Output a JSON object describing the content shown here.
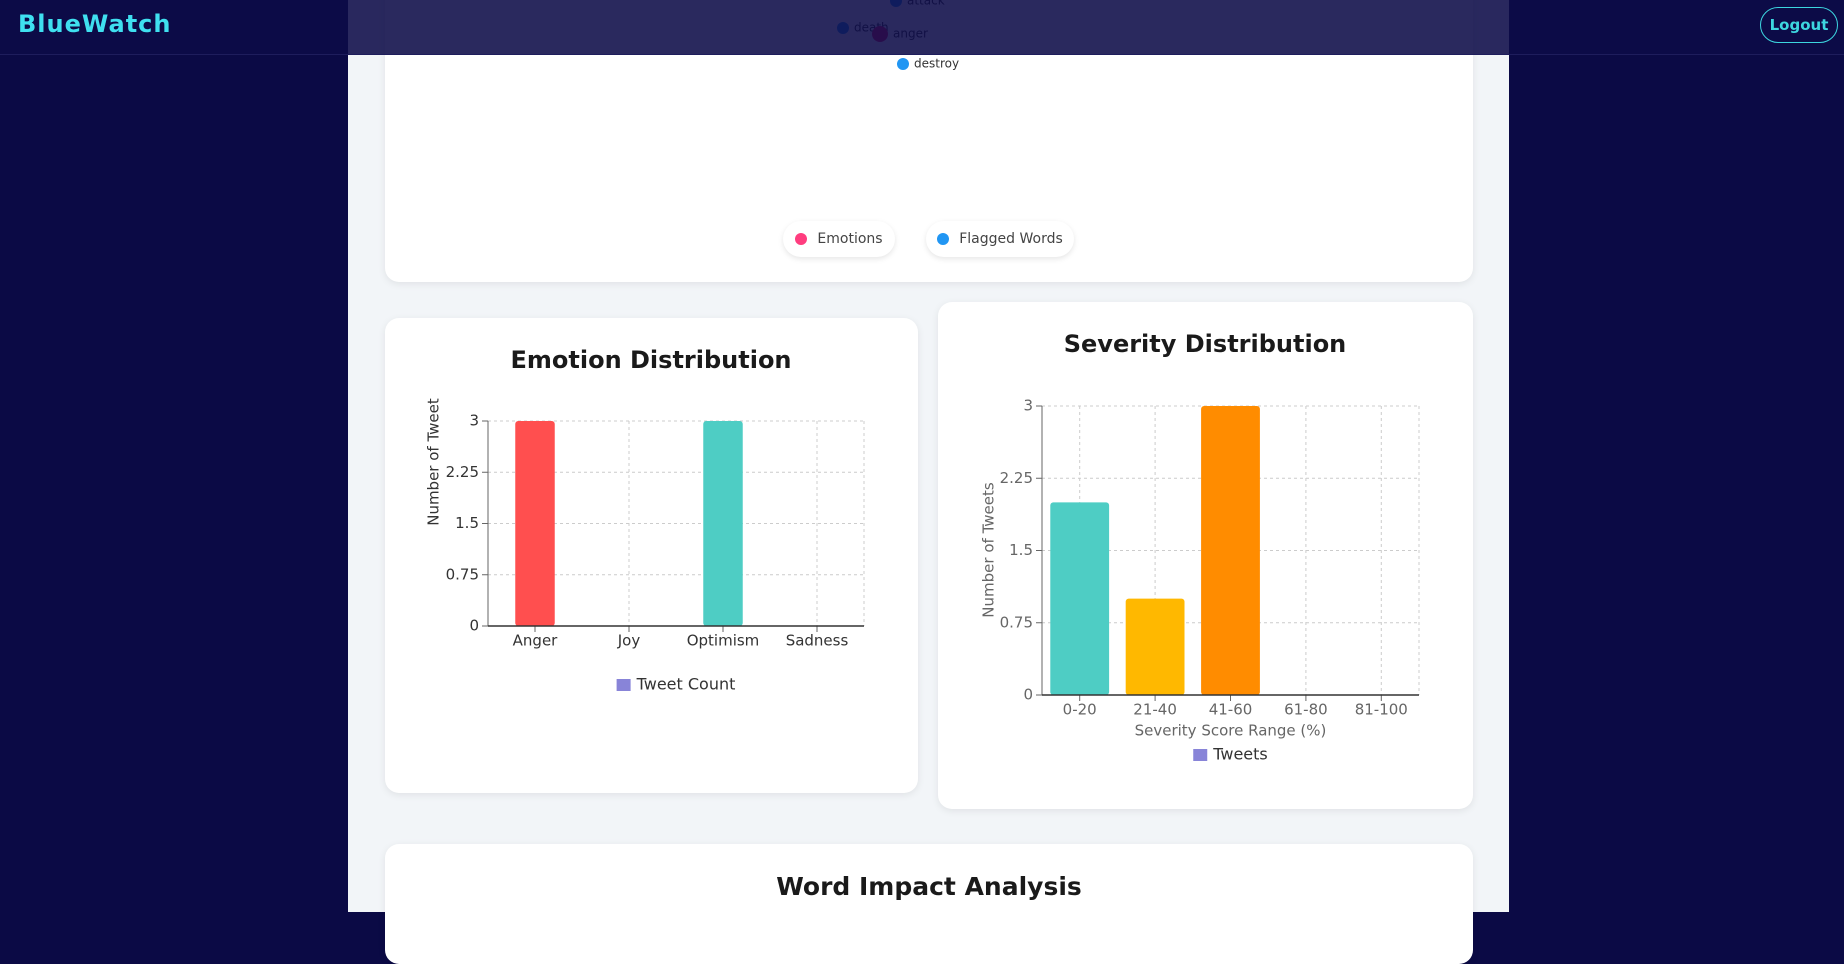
{
  "header": {
    "brand": "BlueWatch",
    "logout": "Logout"
  },
  "network": {
    "nodes": [
      {
        "label": "attack",
        "color": "#2196f3"
      },
      {
        "label": "death",
        "color": "#2196f3"
      },
      {
        "label": "anger",
        "color": "#e91e63"
      },
      {
        "label": "destroy",
        "color": "#2196f3"
      }
    ],
    "legend": [
      {
        "label": "Emotions",
        "color": "#ff3d7f"
      },
      {
        "label": "Flagged Words",
        "color": "#2196f3"
      }
    ]
  },
  "chart_data": [
    {
      "type": "bar",
      "title": "Emotion Distribution",
      "ylabel": "Number of Tweet",
      "categories": [
        "Anger",
        "Joy",
        "Optimism",
        "Sadness"
      ],
      "series": [
        {
          "name": "Tweet Count",
          "color": "#8884d8",
          "values": [
            3,
            0,
            3,
            0
          ]
        }
      ],
      "colors": [
        "#ff4f4f",
        "#ffd93d",
        "#4ecdc4",
        "#45b7d1"
      ],
      "ylim": [
        0,
        3
      ],
      "yticks": [
        0,
        0.75,
        1.5,
        2.25,
        3
      ],
      "grid": true
    },
    {
      "type": "bar",
      "title": "Severity Distribution",
      "ylabel": "Number of Tweets",
      "xlabel": "Severity Score Range (%)",
      "categories": [
        "0-20",
        "21-40",
        "41-60",
        "61-80",
        "81-100"
      ],
      "series": [
        {
          "name": "Tweets",
          "color": "#8884d8",
          "values": [
            2,
            1,
            3,
            0,
            0
          ]
        }
      ],
      "colors": [
        "#4ecdc4",
        "#ffb800",
        "#ff8c00",
        "#ff5252",
        "#d32f2f"
      ],
      "ylim": [
        0,
        3
      ],
      "yticks": [
        0,
        0.75,
        1.5,
        2.25,
        3
      ],
      "grid": true
    }
  ],
  "word_impact": {
    "title": "Word Impact Analysis"
  }
}
